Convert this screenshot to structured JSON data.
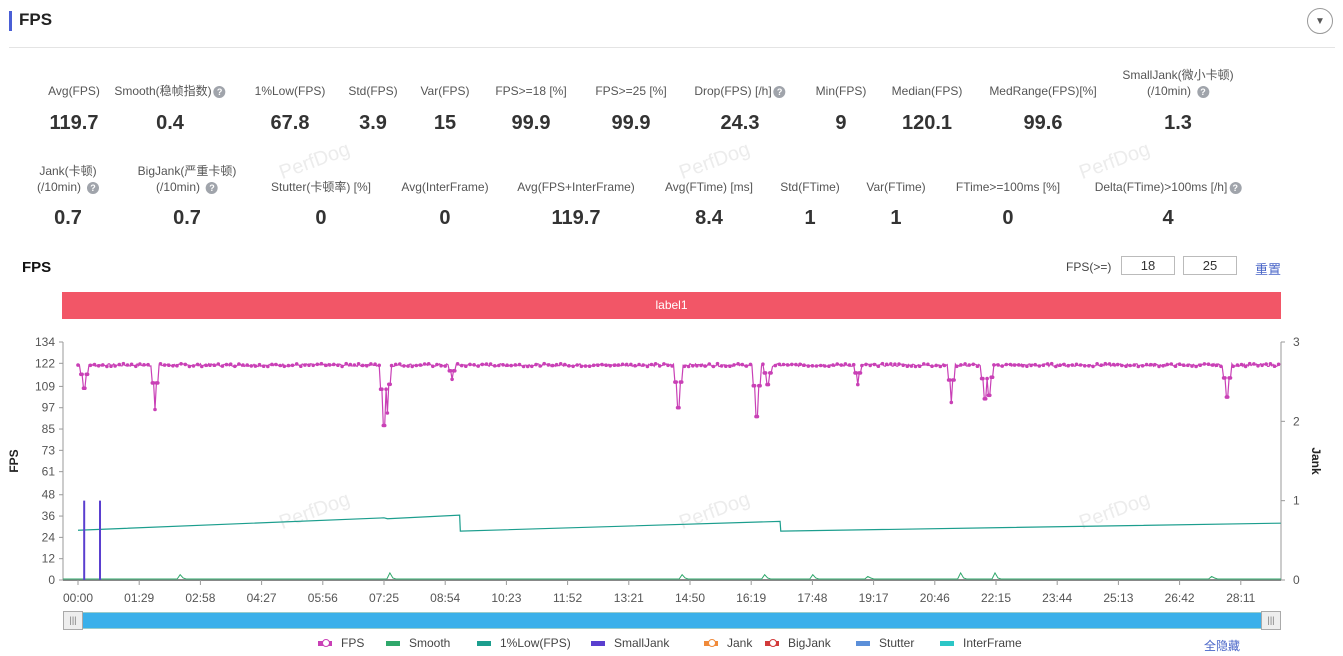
{
  "header": {
    "title": "FPS",
    "collapse_icon": "chevron-down-icon"
  },
  "watermark": "PerfDog",
  "stats_row1": [
    {
      "label": "Avg(FPS)",
      "value": "119.7",
      "help": false
    },
    {
      "label": "Smooth(稳帧指数)",
      "value": "0.4",
      "help": true
    },
    {
      "label": "1%Low(FPS)",
      "value": "67.8",
      "help": false
    },
    {
      "label": "Std(FPS)",
      "value": "3.9",
      "help": false
    },
    {
      "label": "Var(FPS)",
      "value": "15",
      "help": false
    },
    {
      "label": "FPS>=18 [%]",
      "value": "99.9",
      "help": false
    },
    {
      "label": "FPS>=25 [%]",
      "value": "99.9",
      "help": false
    },
    {
      "label": "Drop(FPS) [/h]",
      "value": "24.3",
      "help": true
    },
    {
      "label": "Min(FPS)",
      "value": "9",
      "help": false
    },
    {
      "label": "Median(FPS)",
      "value": "120.1",
      "help": false
    },
    {
      "label": "MedRange(FPS)[%]",
      "value": "99.6",
      "help": false
    },
    {
      "label": "SmallJank(微小卡顿)",
      "label2": "(/10min)",
      "value": "1.3",
      "help": true
    }
  ],
  "stats_row2": [
    {
      "label": "Jank(卡顿)",
      "label2": "(/10min)",
      "value": "0.7",
      "help": true
    },
    {
      "label": "BigJank(严重卡顿)",
      "label2": "(/10min)",
      "value": "0.7",
      "help": true
    },
    {
      "label": "Stutter(卡顿率) [%]",
      "value": "0",
      "help": false
    },
    {
      "label": "Avg(InterFrame)",
      "value": "0",
      "help": false
    },
    {
      "label": "Avg(FPS+InterFrame)",
      "value": "119.7",
      "help": false
    },
    {
      "label": "Avg(FTime) [ms]",
      "value": "8.4",
      "help": false
    },
    {
      "label": "Std(FTime)",
      "value": "1",
      "help": false
    },
    {
      "label": "Var(FTime)",
      "value": "1",
      "help": false
    },
    {
      "label": "FTime>=100ms [%]",
      "value": "0",
      "help": false
    },
    {
      "label": "Delta(FTime)>100ms [/h]",
      "value": "4",
      "help": true
    }
  ],
  "chart_header": {
    "title": "FPS",
    "threshold_label": "FPS(>=)",
    "threshold1": "18",
    "threshold2": "25",
    "reset": "重置"
  },
  "label_bar": "label1",
  "legend": {
    "hide_all": "全隐藏"
  },
  "chart_data": {
    "type": "line",
    "ylabel": "FPS",
    "y2label": "Jank",
    "yticks": [
      "0",
      "12",
      "24",
      "36",
      "48",
      "61",
      "73",
      "85",
      "97",
      "109",
      "122",
      "134"
    ],
    "ylim": [
      0,
      134
    ],
    "y2ticks": [
      "0",
      "1",
      "2",
      "3"
    ],
    "y2lim": [
      0,
      3
    ],
    "xticks": [
      "00:00",
      "01:29",
      "02:58",
      "04:27",
      "05:56",
      "07:25",
      "08:54",
      "10:23",
      "11:52",
      "13:21",
      "14:50",
      "16:19",
      "17:48",
      "19:17",
      "20:46",
      "22:15",
      "23:44",
      "25:13",
      "26:42",
      "28:11"
    ],
    "duration_s": 1749,
    "fps_baseline": 121,
    "fps_dips": [
      [
        9,
        108
      ],
      [
        112,
        96
      ],
      [
        445,
        87
      ],
      [
        450,
        94
      ],
      [
        544,
        113
      ],
      [
        873,
        97
      ],
      [
        987,
        92
      ],
      [
        1003,
        110
      ],
      [
        1134,
        110
      ],
      [
        1270,
        100
      ],
      [
        1319,
        102
      ],
      [
        1325,
        104
      ],
      [
        1671,
        103
      ]
    ],
    "one_percent_low": [
      [
        0,
        28
      ],
      [
        445,
        35
      ],
      [
        450,
        34.5
      ],
      [
        555,
        36.5
      ],
      [
        556,
        27.5
      ],
      [
        1021,
        33
      ],
      [
        1022,
        27.5
      ],
      [
        1749,
        32
      ]
    ],
    "small_jank": [
      [
        9,
        1
      ],
      [
        32,
        1
      ]
    ],
    "smooth_bumps": [
      [
        150,
        3
      ],
      [
        455,
        4
      ],
      [
        880,
        3
      ],
      [
        1000,
        3
      ],
      [
        1070,
        3
      ],
      [
        1150,
        2
      ],
      [
        1285,
        4
      ],
      [
        1335,
        4
      ],
      [
        1650,
        2
      ]
    ],
    "series": [
      {
        "name": "FPS",
        "color": "#c940b6"
      },
      {
        "name": "Smooth",
        "color": "#2fa86b"
      },
      {
        "name": "1%Low(FPS)",
        "color": "#1c9e8e"
      },
      {
        "name": "SmallJank",
        "color": "#5a3fcf"
      },
      {
        "name": "Jank",
        "color": "#f08a3a"
      },
      {
        "name": "BigJank",
        "color": "#d23a3a"
      },
      {
        "name": "Stutter",
        "color": "#5b8fd9"
      },
      {
        "name": "InterFrame",
        "color": "#2cc6c6"
      }
    ]
  }
}
